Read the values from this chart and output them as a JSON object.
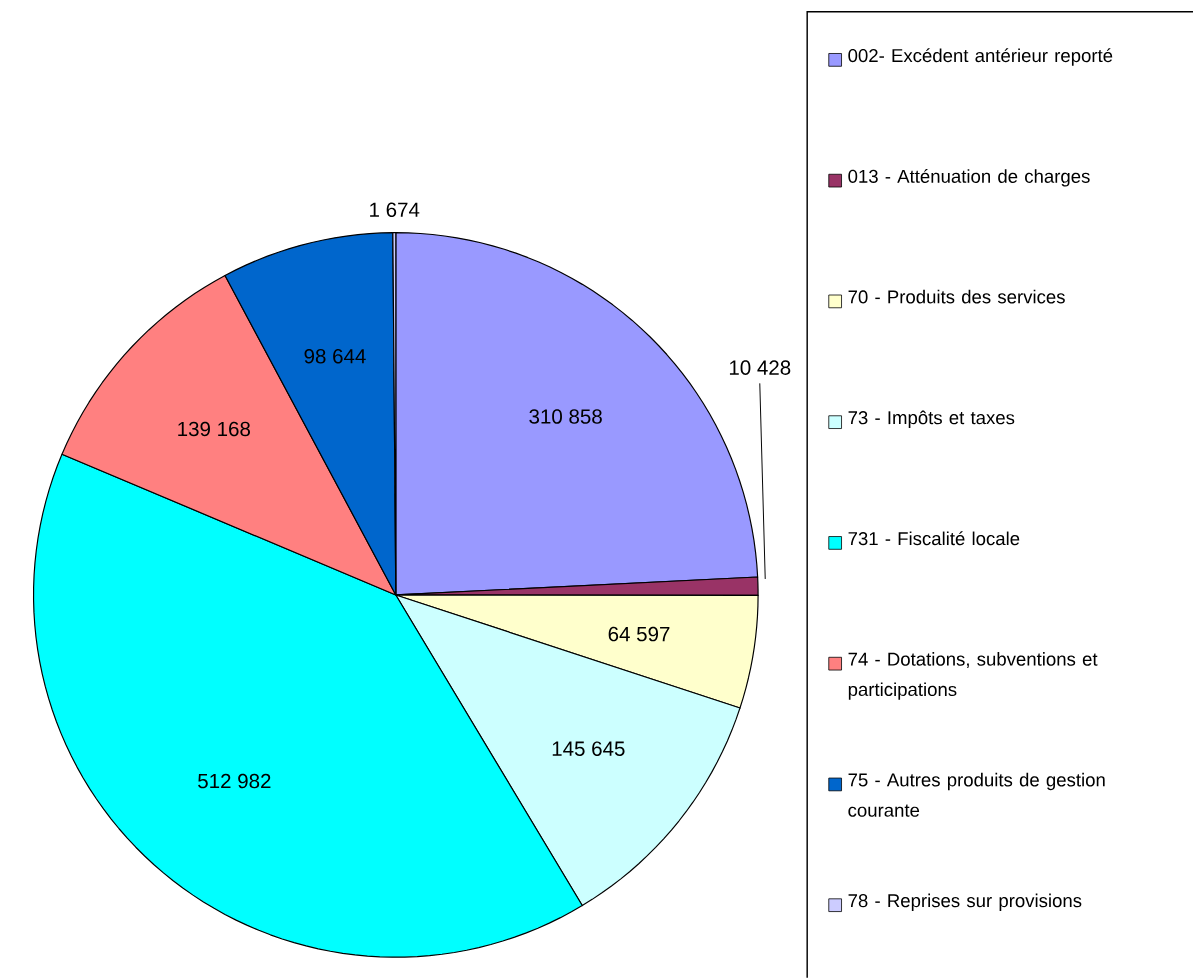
{
  "chart_data": {
    "type": "pie",
    "categories": [
      "002- Excédent antérieur reporté",
      "013 - Atténuation de charges",
      "70 - Produits des services",
      "73 - Impôts et taxes",
      "731 - Fiscalité locale",
      "74 - Dotations, subventions et participations",
      "75 - Autres produits de gestion courante",
      "78 - Reprises sur provisions"
    ],
    "values": [
      310858,
      10428,
      64597,
      145645,
      512982,
      139168,
      98644,
      1674
    ],
    "value_labels": [
      "310 858",
      "10 428",
      "64 597",
      "145 645",
      "512 982",
      "139 168",
      "98 644",
      "1 674"
    ],
    "colors": [
      "#9999ff",
      "#993366",
      "#ffffcc",
      "#ccffff",
      "#00ffff",
      "#ff8080",
      "#0066cc",
      "#ccccff"
    ],
    "legend": "right"
  }
}
